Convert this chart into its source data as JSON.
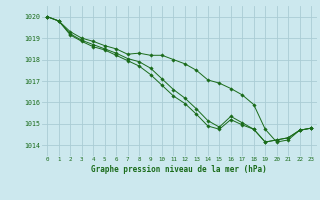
{
  "title": "Graphe pression niveau de la mer (hPa)",
  "bg_color": "#cce8ee",
  "grid_color": "#aaccd4",
  "line_color": "#1a6b1a",
  "x_ticks": [
    0,
    1,
    2,
    3,
    4,
    5,
    6,
    7,
    8,
    9,
    10,
    11,
    12,
    13,
    14,
    15,
    16,
    17,
    18,
    19,
    20,
    21,
    22,
    23
  ],
  "ylim": [
    1013.5,
    1020.5
  ],
  "yticks": [
    1014,
    1015,
    1016,
    1017,
    1018,
    1019,
    1020
  ],
  "series": [
    [
      1020.0,
      1019.8,
      1019.3,
      1019.0,
      1018.85,
      1018.65,
      1018.5,
      1018.25,
      1018.3,
      1018.2,
      1018.2,
      1018.0,
      1017.8,
      1017.5,
      1017.05,
      1016.9,
      1016.65,
      1016.35,
      1015.9,
      1014.75,
      1014.15,
      1014.25,
      1014.7,
      1014.8
    ],
    [
      1020.0,
      1019.8,
      1019.2,
      1018.9,
      1018.7,
      1018.5,
      1018.3,
      1018.05,
      1017.9,
      1017.6,
      1017.1,
      1016.6,
      1016.2,
      1015.7,
      1015.15,
      1014.85,
      1015.35,
      1015.05,
      1014.75,
      1014.15,
      1014.25,
      1014.35,
      1014.7,
      1014.8
    ],
    [
      1020.0,
      1019.8,
      1019.15,
      1018.85,
      1018.6,
      1018.45,
      1018.2,
      1017.95,
      1017.7,
      1017.3,
      1016.8,
      1016.3,
      1015.95,
      1015.45,
      1014.9,
      1014.75,
      1015.2,
      1014.95,
      1014.75,
      1014.15,
      1014.25,
      1014.35,
      1014.7,
      1014.8
    ]
  ]
}
